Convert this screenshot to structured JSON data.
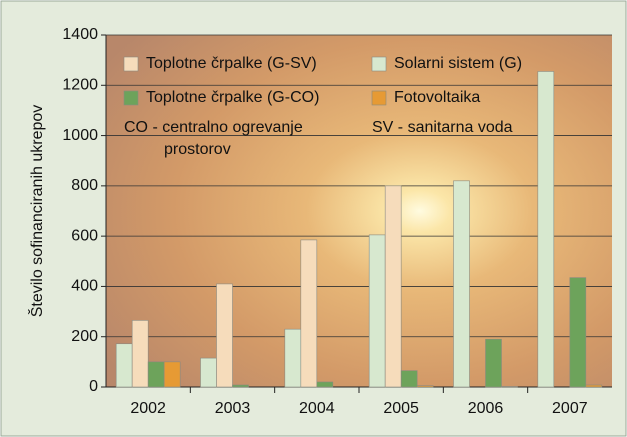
{
  "chart_data": {
    "type": "bar",
    "y_label": "Število sofinanciranih ukrepov",
    "categories": [
      "2002",
      "2003",
      "2004",
      "2005",
      "2006",
      "2007"
    ],
    "series": [
      {
        "name": "Solarni sistem (G)",
        "color": "#d7e8cf",
        "values": [
          172,
          115,
          230,
          605,
          820,
          1255
        ]
      },
      {
        "name": "Toplotne črpalke (G-SV)",
        "color": "#f6dcbb",
        "values": [
          265,
          410,
          585,
          800,
          0,
          0
        ]
      },
      {
        "name": "Toplotne črpalke (G-CO)",
        "color": "#6da35b",
        "values": [
          100,
          8,
          20,
          65,
          190,
          435
        ]
      },
      {
        "name": "Fotovoltaika",
        "color": "#e69a34",
        "values": [
          100,
          0,
          0,
          5,
          2,
          8
        ]
      }
    ],
    "annotations": [
      "CO - centralno ogrevanje",
      "prostorov",
      "SV - sanitarna voda"
    ],
    "ylim": [
      0,
      1400
    ],
    "yticks": [
      0,
      200,
      400,
      600,
      800,
      1000,
      1200,
      1400
    ],
    "grid": true
  }
}
